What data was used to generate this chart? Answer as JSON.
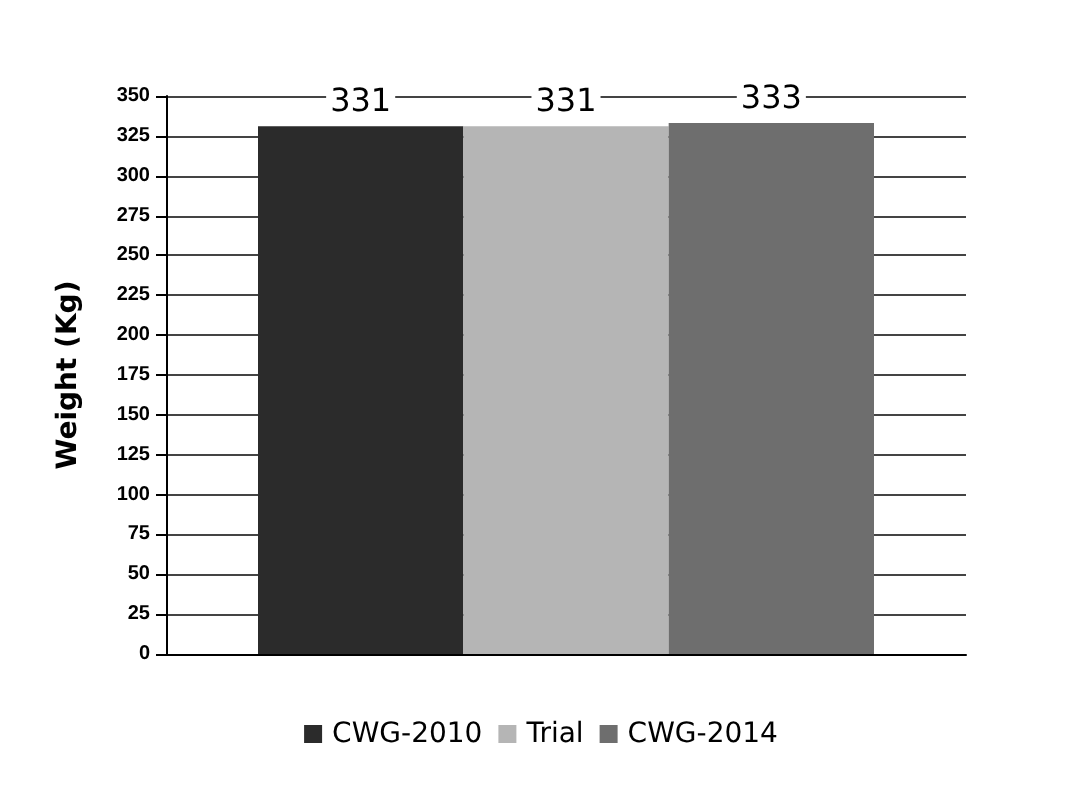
{
  "chart_data": {
    "type": "bar",
    "ylabel": "Weight (Kg)",
    "categories": [
      null
    ],
    "series": [
      {
        "name": "CWG-2010",
        "color": "#2b2b2b",
        "values": [
          331
        ]
      },
      {
        "name": "Trial",
        "color": "#b5b5b5",
        "values": [
          331
        ]
      },
      {
        "name": "CWG-2014",
        "color": "#6e6e6e",
        "values": [
          333
        ]
      }
    ],
    "ylim": [
      0,
      350
    ],
    "yticks": [
      0,
      25,
      50,
      75,
      100,
      125,
      150,
      175,
      200,
      225,
      250,
      275,
      300,
      325,
      350
    ],
    "grid": "y",
    "legend": "bottom",
    "data_labels": true
  }
}
